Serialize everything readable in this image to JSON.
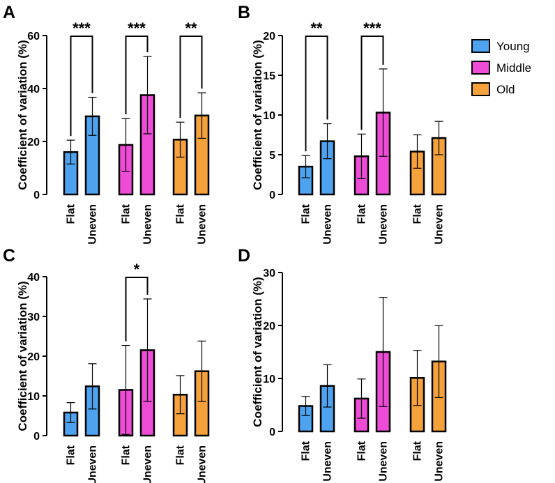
{
  "figure": {
    "legend": [
      {
        "label": "Young",
        "color": "#4ea3f0"
      },
      {
        "label": "Middle",
        "color": "#ee4bd6"
      },
      {
        "label": "Old",
        "color": "#f5a13c"
      }
    ]
  },
  "chart_data": [
    {
      "panel": "A",
      "type": "bar",
      "ylabel": "Coefficient of variation (%)",
      "ylim": [
        0,
        60
      ],
      "yticks": [
        0,
        20,
        40,
        60
      ],
      "categories": [
        "Flat",
        "Uneven"
      ],
      "groups": [
        {
          "name": "Young",
          "values": [
            16,
            29.5
          ],
          "errors": [
            4.5,
            7.2
          ]
        },
        {
          "name": "Middle",
          "values": [
            18.7,
            37.5
          ],
          "errors": [
            10,
            14.6
          ]
        },
        {
          "name": "Old",
          "values": [
            20.7,
            29.8
          ],
          "errors": [
            6.6,
            8.6
          ]
        }
      ],
      "significance": [
        {
          "group": "Young",
          "label": "***"
        },
        {
          "group": "Middle",
          "label": "***"
        },
        {
          "group": "Old",
          "label": "**"
        }
      ]
    },
    {
      "panel": "B",
      "type": "bar",
      "ylabel": "Coefficient of variation (%)",
      "ylim": [
        0,
        20
      ],
      "yticks": [
        0,
        5,
        10,
        15,
        20
      ],
      "categories": [
        "Flat",
        "Uneven"
      ],
      "groups": [
        {
          "name": "Young",
          "values": [
            3.5,
            6.7
          ],
          "errors": [
            1.4,
            2.2
          ]
        },
        {
          "name": "Middle",
          "values": [
            4.8,
            10.3
          ],
          "errors": [
            2.8,
            5.5
          ]
        },
        {
          "name": "Old",
          "values": [
            5.4,
            7.1
          ],
          "errors": [
            2.1,
            2.1
          ]
        }
      ],
      "significance": [
        {
          "group": "Young",
          "label": "**"
        },
        {
          "group": "Middle",
          "label": "***"
        }
      ]
    },
    {
      "panel": "C",
      "type": "bar",
      "ylabel": "Coefficient of variation (%)",
      "ylim": [
        0,
        40
      ],
      "yticks": [
        0,
        10,
        20,
        30,
        40
      ],
      "categories": [
        "Flat",
        "Uneven"
      ],
      "groups": [
        {
          "name": "Young",
          "values": [
            5.8,
            12.4
          ],
          "errors": [
            2.5,
            5.7
          ]
        },
        {
          "name": "Middle",
          "values": [
            11.5,
            21.5
          ],
          "errors": [
            11.2,
            12.9
          ]
        },
        {
          "name": "Old",
          "values": [
            10.3,
            16.2
          ],
          "errors": [
            4.8,
            7.6
          ]
        }
      ],
      "significance": [
        {
          "group": "Middle",
          "label": "*"
        }
      ]
    },
    {
      "panel": "D",
      "type": "bar",
      "ylabel": "Coefficient of variation (%)",
      "ylim": [
        0,
        30
      ],
      "yticks": [
        0,
        10,
        20,
        30
      ],
      "categories": [
        "Flat",
        "Uneven"
      ],
      "groups": [
        {
          "name": "Young",
          "values": [
            4.8,
            8.6
          ],
          "errors": [
            1.8,
            4.0
          ]
        },
        {
          "name": "Middle",
          "values": [
            6.2,
            15.0
          ],
          "errors": [
            3.7,
            10.3
          ]
        },
        {
          "name": "Old",
          "values": [
            10.1,
            13.2
          ],
          "errors": [
            5.2,
            6.8
          ]
        }
      ],
      "significance": []
    }
  ]
}
